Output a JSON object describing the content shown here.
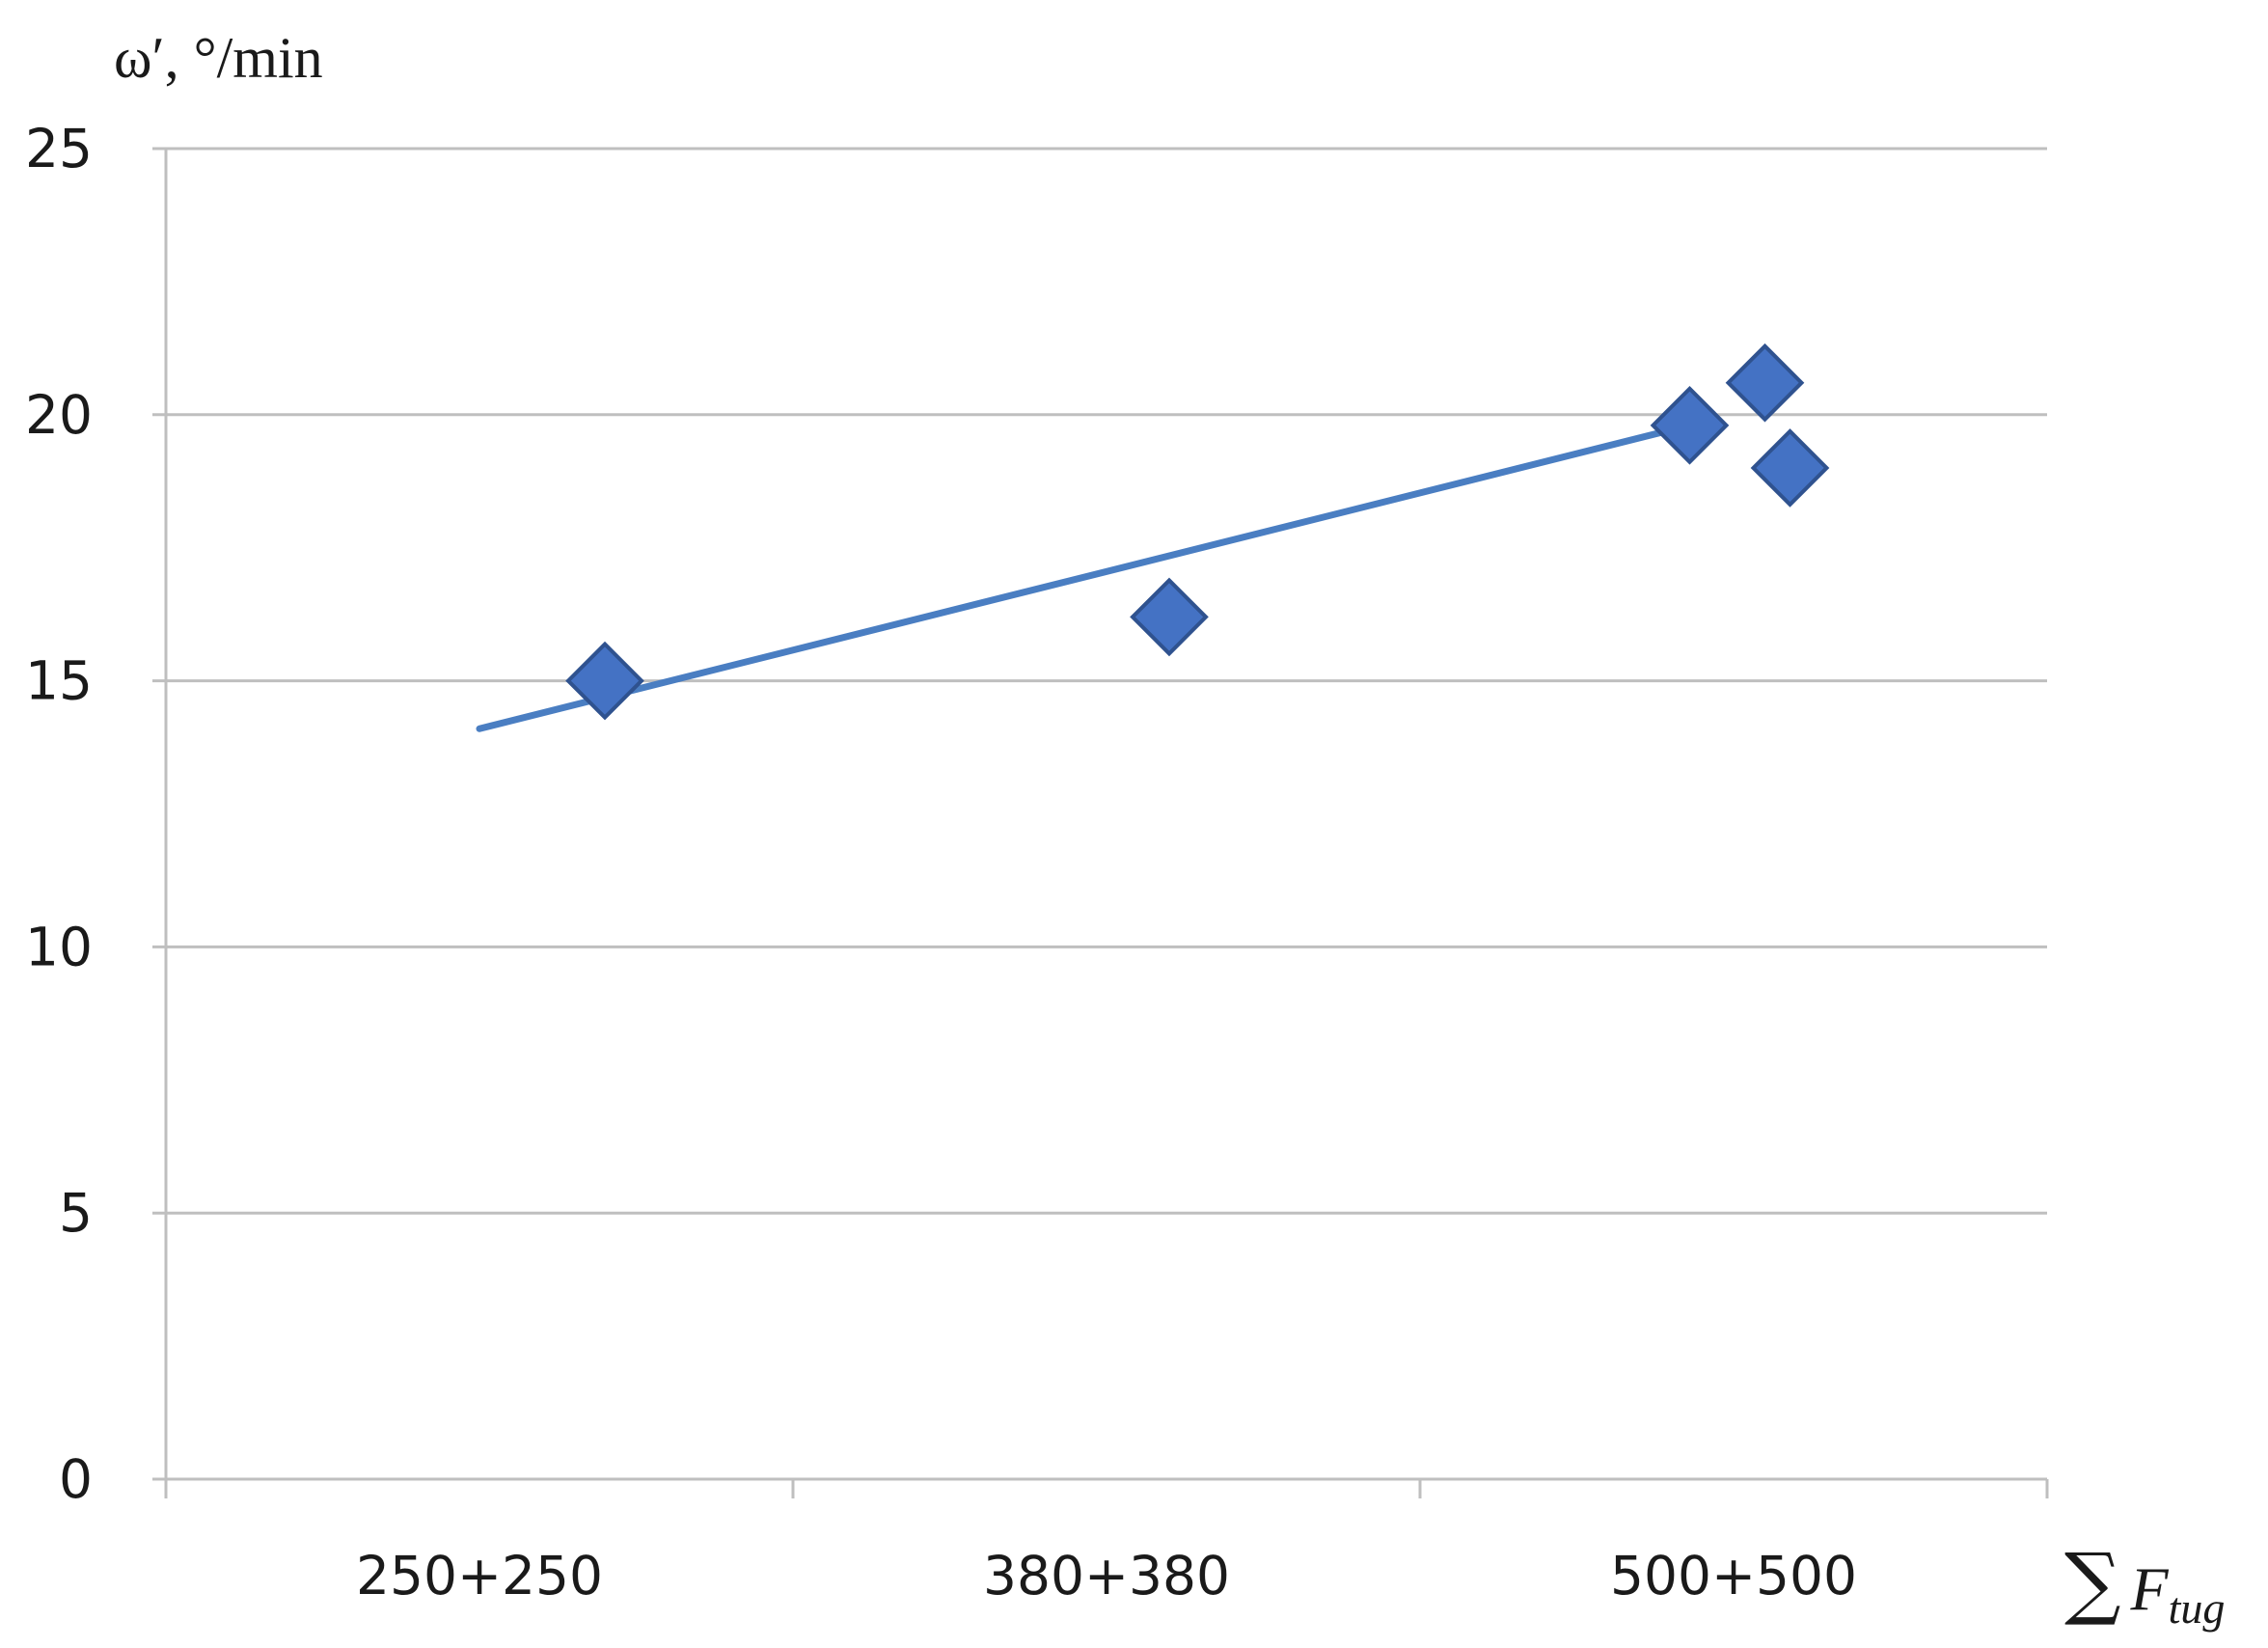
{
  "chart_data": {
    "type": "scatter",
    "title": "",
    "ylabel": "ω′, °/min",
    "xlabel": {
      "symbol": "∑",
      "main": "F",
      "subscript": "tug"
    },
    "ylim": [
      0,
      25
    ],
    "yticks": [
      "0",
      "5",
      "10",
      "15",
      "20",
      "25"
    ],
    "categories": [
      "250+250",
      "380+380",
      "500+500"
    ],
    "grid": "horizontal",
    "legend": "none",
    "marker": "diamond",
    "colors": {
      "marker": "#4472C4",
      "marker_edge": "#2F528F",
      "trendline": "#4A7EC2",
      "grid": "#BFBFBF"
    },
    "points": [
      {
        "x": 1.2,
        "y": 15.0
      },
      {
        "x": 2.1,
        "y": 16.2
      },
      {
        "x": 2.93,
        "y": 19.8
      },
      {
        "x": 3.05,
        "y": 20.6
      },
      {
        "x": 3.09,
        "y": 19.0
      }
    ],
    "trendline": {
      "type": "linear",
      "x": [
        1.0,
        2.93
      ],
      "y": [
        14.1,
        19.8
      ]
    }
  }
}
